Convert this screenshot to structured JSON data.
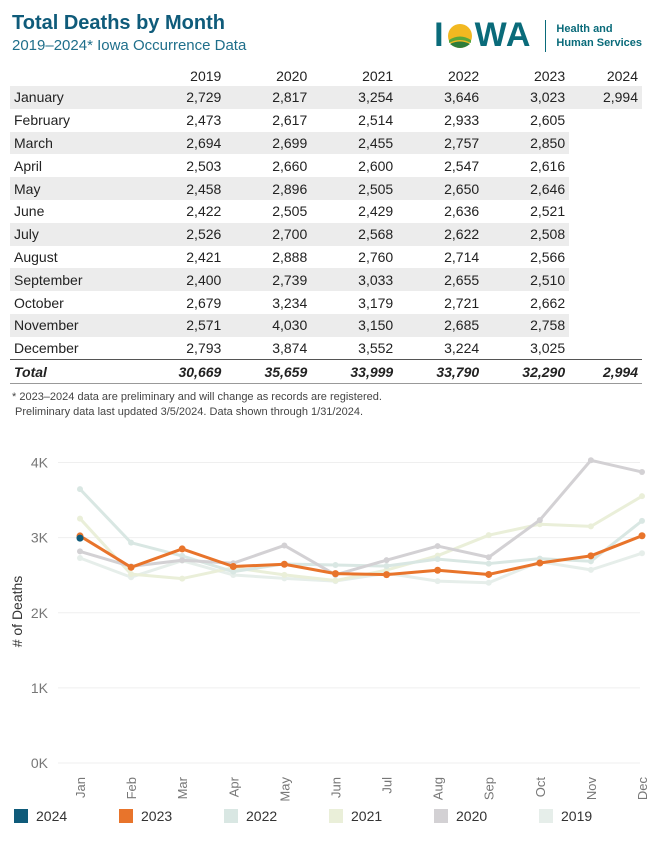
{
  "header": {
    "title": "Total Deaths by Month",
    "subtitle": "2019–2024* Iowa Occurrence Data",
    "logo_word_left": "I",
    "logo_word_right": "WA",
    "logo_agency_line1": "Health and",
    "logo_agency_line2": "Human Services"
  },
  "table": {
    "month_header": "",
    "years": [
      "2019",
      "2020",
      "2021",
      "2022",
      "2023",
      "2024"
    ],
    "rows": [
      {
        "month": "January",
        "values": [
          "2,729",
          "2,817",
          "3,254",
          "3,646",
          "3,023",
          "2,994"
        ]
      },
      {
        "month": "February",
        "values": [
          "2,473",
          "2,617",
          "2,514",
          "2,933",
          "2,605",
          ""
        ]
      },
      {
        "month": "March",
        "values": [
          "2,694",
          "2,699",
          "2,455",
          "2,757",
          "2,850",
          ""
        ]
      },
      {
        "month": "April",
        "values": [
          "2,503",
          "2,660",
          "2,600",
          "2,547",
          "2,616",
          ""
        ]
      },
      {
        "month": "May",
        "values": [
          "2,458",
          "2,896",
          "2,505",
          "2,650",
          "2,646",
          ""
        ]
      },
      {
        "month": "June",
        "values": [
          "2,422",
          "2,505",
          "2,429",
          "2,636",
          "2,521",
          ""
        ]
      },
      {
        "month": "July",
        "values": [
          "2,526",
          "2,700",
          "2,568",
          "2,622",
          "2,508",
          ""
        ]
      },
      {
        "month": "August",
        "values": [
          "2,421",
          "2,888",
          "2,760",
          "2,714",
          "2,566",
          ""
        ]
      },
      {
        "month": "September",
        "values": [
          "2,400",
          "2,739",
          "3,033",
          "2,655",
          "2,510",
          ""
        ]
      },
      {
        "month": "October",
        "values": [
          "2,679",
          "3,234",
          "3,179",
          "2,721",
          "2,662",
          ""
        ]
      },
      {
        "month": "November",
        "values": [
          "2,571",
          "4,030",
          "3,150",
          "2,685",
          "2,758",
          ""
        ]
      },
      {
        "month": "December",
        "values": [
          "2,793",
          "3,874",
          "3,552",
          "3,224",
          "3,025",
          ""
        ]
      }
    ],
    "total": {
      "label": "Total",
      "values": [
        "30,669",
        "35,659",
        "33,999",
        "33,790",
        "32,290",
        "2,994"
      ]
    }
  },
  "notes": {
    "line1": "* 2023–2024 data are preliminary and will change as records are registered.",
    "line2": " Preliminary data last updated 3/5/2024. Data shown through 1/31/2024."
  },
  "chart_data": {
    "type": "line",
    "title": "",
    "xlabel": "",
    "ylabel": "# of Deaths",
    "ylim": [
      0,
      4300
    ],
    "yticks": [
      0,
      1000,
      2000,
      3000,
      4000
    ],
    "ytick_labels": [
      "0K",
      "1K",
      "2K",
      "3K",
      "4K"
    ],
    "categories": [
      "Jan",
      "Feb",
      "Mar",
      "Apr",
      "May",
      "Jun",
      "Jul",
      "Aug",
      "Sep",
      "Oct",
      "Nov",
      "Dec"
    ],
    "grid": "horizontal",
    "legend_position": "bottom",
    "series": [
      {
        "name": "2019",
        "color": "#e6eeea",
        "values": [
          2729,
          2473,
          2694,
          2503,
          2458,
          2422,
          2526,
          2421,
          2400,
          2679,
          2571,
          2793
        ]
      },
      {
        "name": "2020",
        "color": "#d3d1d4",
        "values": [
          2817,
          2617,
          2699,
          2660,
          2896,
          2505,
          2700,
          2888,
          2739,
          3234,
          4030,
          3874
        ]
      },
      {
        "name": "2021",
        "color": "#eaefd9",
        "values": [
          3254,
          2514,
          2455,
          2600,
          2505,
          2429,
          2568,
          2760,
          3033,
          3179,
          3150,
          3552
        ]
      },
      {
        "name": "2022",
        "color": "#d9e7e3",
        "values": [
          3646,
          2933,
          2757,
          2547,
          2650,
          2636,
          2622,
          2714,
          2655,
          2721,
          2685,
          3224
        ]
      },
      {
        "name": "2023",
        "color": "#e8742b",
        "values": [
          3023,
          2605,
          2850,
          2616,
          2646,
          2521,
          2508,
          2566,
          2510,
          2662,
          2758,
          3025
        ]
      },
      {
        "name": "2024",
        "color": "#0f5b7a",
        "values": [
          2994,
          null,
          null,
          null,
          null,
          null,
          null,
          null,
          null,
          null,
          null,
          null
        ]
      }
    ],
    "legend_order": [
      "2024",
      "2023",
      "2022",
      "2021",
      "2020",
      "2019"
    ]
  }
}
